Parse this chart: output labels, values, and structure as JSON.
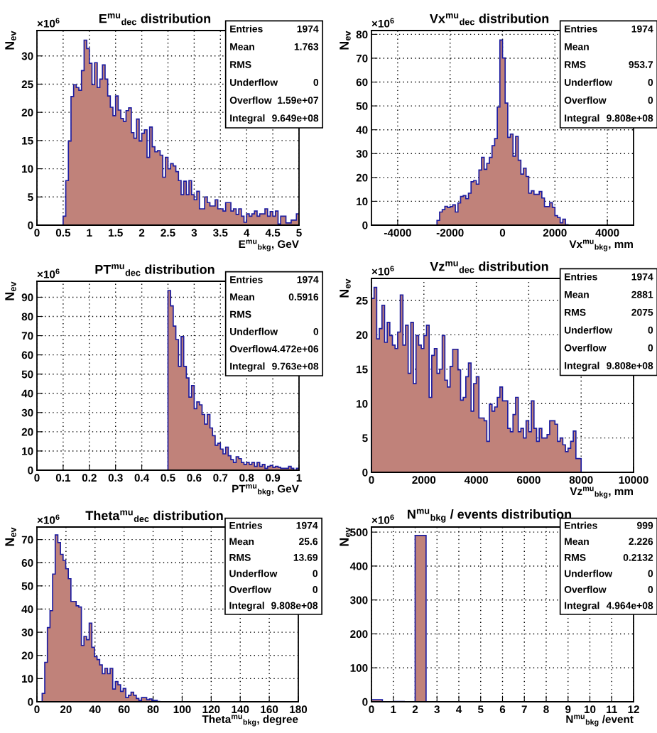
{
  "chart_data": [
    {
      "type": "histogram",
      "title": "E$^{mu}$$_{dec}$ distribution",
      "xlabel": "E$^{mu}$$_{bkg}$, GeV",
      "ylabel": "N$_{ev}$",
      "color": "#c0827a",
      "grid": true,
      "annotations": [
        "×10$^{6}$",
        "Entries 1974",
        "Mean 1.763",
        "RMS",
        "Underflow 0",
        "Overflow 1.59e+07",
        "Integral 9.649e+08"
      ],
      "bins": [
        0,
        0.5,
        0.55,
        0.6,
        0.65,
        0.7,
        0.75,
        0.8,
        0.85,
        0.9,
        0.95,
        1.0,
        1.05,
        1.1,
        1.15,
        1.2,
        1.25,
        1.3,
        1.35,
        1.4,
        1.45,
        1.5,
        1.55,
        1.6,
        1.65,
        1.7,
        1.75,
        1.8,
        1.85,
        1.9,
        1.95,
        2.0,
        2.05,
        2.1,
        2.15,
        2.2,
        2.25,
        2.3,
        2.35,
        2.4,
        2.45,
        2.5,
        2.55,
        2.6,
        2.65,
        2.7,
        2.75,
        2.8,
        2.85,
        2.9,
        2.95,
        3.0,
        3.05,
        3.1,
        3.15,
        3.2,
        3.25,
        3.3,
        3.35,
        3.4,
        3.45,
        3.5,
        3.55,
        3.6,
        3.65,
        3.7,
        3.75,
        3.8,
        3.85,
        3.9,
        3.95,
        4.0,
        4.05,
        4.1,
        4.15,
        4.2,
        4.25,
        4.3,
        4.35,
        4.4,
        4.45,
        4.5,
        4.55,
        4.6,
        4.65,
        4.7,
        4.75,
        4.8,
        4.85,
        4.9,
        4.95,
        5.0
      ],
      "values": [
        0,
        1.6,
        7.9,
        14.9,
        22.8,
        24.9,
        24.4,
        23.9,
        27.4,
        32.8,
        31.3,
        28.7,
        24.9,
        28.8,
        24.4,
        25.9,
        28.4,
        25.9,
        22.9,
        20.9,
        19.4,
        22.9,
        20.4,
        18.9,
        18.4,
        20.3,
        20.8,
        16.4,
        15.4,
        18.8,
        14.9,
        16.3,
        16.9,
        12.0,
        17.4,
        13.9,
        13.0,
        13.2,
        12.4,
        8.5,
        12.0,
        10.0,
        10.9,
        10.5,
        9.5,
        7.9,
        5.4,
        7.8,
        5.4,
        7.9,
        5.4,
        4.5,
        6.0,
        2.9,
        2.9,
        5.0,
        4.0,
        3.4,
        3.4,
        4.5,
        2.9,
        2.9,
        2.5,
        4.0,
        4.0,
        2.5,
        2.9,
        1.9,
        2.9,
        1.6,
        0.5,
        2.0,
        1.6,
        2.0,
        2.5,
        1.6,
        2.0,
        2.0,
        2.9,
        1.6,
        2.4,
        1.6,
        2.5,
        0.2,
        1.6,
        1.6,
        0.4,
        0.4,
        0.9,
        0.9,
        2.0
      ],
      "xlim": [
        0,
        5
      ],
      "ylim": [
        0,
        34.5
      ],
      "xticks": [
        0,
        0.5,
        1,
        1.5,
        2,
        2.5,
        3,
        3.5,
        4,
        4.5,
        5
      ],
      "yticks": [
        0,
        5,
        10,
        15,
        20,
        25,
        30
      ]
    },
    {
      "type": "histogram",
      "title": "Vx$^{mu}$$_{dec}$ distribution",
      "xlabel": "Vx$^{mu}$$_{bkg}$, mm",
      "ylabel": "N$_{ev}$",
      "color": "#c0827a",
      "grid": true,
      "annotations": [
        "×10$^{6}$",
        "Entries 1974",
        "Mean",
        "RMS 953.7",
        "Underflow 0",
        "Overflow 0",
        "Integral 9.808e+08"
      ],
      "bins": [
        -5000,
        -2500,
        -2400,
        -2300,
        -2200,
        -2100,
        -2000,
        -1900,
        -1800,
        -1700,
        -1600,
        -1500,
        -1400,
        -1300,
        -1200,
        -1100,
        -1000,
        -900,
        -800,
        -700,
        -600,
        -500,
        -400,
        -300,
        -200,
        -100,
        0,
        100,
        200,
        300,
        400,
        500,
        600,
        700,
        800,
        900,
        1000,
        1100,
        1200,
        1300,
        1400,
        1500,
        1600,
        1700,
        1800,
        1900,
        2000,
        2100,
        2200,
        2300,
        2400,
        2500,
        5000
      ],
      "values": [
        0,
        2.0,
        5.5,
        6.5,
        7.9,
        7.4,
        7.8,
        8.5,
        5.5,
        9.3,
        12.0,
        12.4,
        11.1,
        13.4,
        18.2,
        18.7,
        17.2,
        23.1,
        28.4,
        23.4,
        25.9,
        28.4,
        33.3,
        36.3,
        49.5,
        77.6,
        70.1,
        51.2,
        36.8,
        38.2,
        28.9,
        37.2,
        27.2,
        21.4,
        23.9,
        20.4,
        13.4,
        14.4,
        12.9,
        12.9,
        14.1,
        11.4,
        7.8,
        7.8,
        9.4,
        7.5,
        4.0,
        3.2,
        1.0,
        2.5,
        0.2,
        0
      ],
      "xlim": [
        -5000,
        5000
      ],
      "ylim": [
        0,
        81.6
      ],
      "xticks": [
        -4000,
        -2000,
        0,
        2000,
        4000
      ],
      "yticks": [
        0,
        10,
        20,
        30,
        40,
        50,
        60,
        70,
        80
      ]
    },
    {
      "type": "histogram",
      "title": "PT$^{mu}$$_{dec}$ distribution",
      "xlabel": "PT$^{mu}$$_{bkg}$, GeV",
      "ylabel": "N$_{ev}$",
      "color": "#c0827a",
      "grid": true,
      "annotations": [
        "×10$^{6}$",
        "Entries 1974",
        "Mean 0.5916",
        "RMS",
        "Underflow 0",
        "Overflow 4.472e+06",
        "Integral 9.763e+08"
      ],
      "bins": [
        0,
        0.5,
        0.51,
        0.52,
        0.53,
        0.54,
        0.55,
        0.56,
        0.57,
        0.58,
        0.59,
        0.6,
        0.61,
        0.62,
        0.63,
        0.64,
        0.65,
        0.66,
        0.67,
        0.68,
        0.69,
        0.7,
        0.71,
        0.72,
        0.73,
        0.74,
        0.75,
        0.76,
        0.77,
        0.78,
        0.79,
        0.8,
        0.81,
        0.82,
        0.83,
        0.84,
        0.85,
        0.86,
        0.87,
        0.88,
        0.89,
        0.9,
        0.91,
        0.92,
        0.93,
        0.94,
        0.95,
        0.96,
        0.97,
        0.98,
        0.99,
        1.0
      ],
      "values": [
        0,
        93.5,
        85.5,
        75,
        68,
        54,
        69.5,
        54,
        48,
        38,
        44,
        32,
        35.5,
        34,
        29,
        24,
        29,
        22,
        18,
        13,
        14,
        11,
        8.5,
        12,
        7.5,
        5.5,
        4,
        7,
        6,
        4,
        3,
        4,
        3,
        4,
        2,
        4,
        2,
        3,
        1,
        2,
        2.5,
        1.5,
        2,
        1.5,
        1,
        1,
        1,
        2,
        1,
        0,
        1
      ],
      "xlim": [
        0,
        1
      ],
      "ylim": [
        0,
        98.3
      ],
      "xticks": [
        0,
        0.1,
        0.2,
        0.3,
        0.4,
        0.5,
        0.6,
        0.7,
        0.8,
        0.9,
        1
      ],
      "yticks": [
        0,
        10,
        20,
        30,
        40,
        50,
        60,
        70,
        80,
        90
      ]
    },
    {
      "type": "histogram",
      "title": "Vz$^{mu}$$_{dec}$ distribution",
      "xlabel": "Vz$^{mu}$$_{bkg}$, mm",
      "ylabel": "N$_{ev}$",
      "color": "#c0827a",
      "grid": true,
      "annotations": [
        "×10$^{6}$",
        "Entries 1974",
        "Mean 2881",
        "RMS 2075",
        "Underflow 0",
        "Overflow 0",
        "Integral 9.808e+08"
      ],
      "bins": [
        0,
        100,
        200,
        300,
        400,
        500,
        600,
        700,
        800,
        900,
        1000,
        1100,
        1200,
        1300,
        1400,
        1500,
        1600,
        1700,
        1800,
        1900,
        2000,
        2100,
        2200,
        2300,
        2400,
        2500,
        2600,
        2700,
        2800,
        2900,
        3000,
        3100,
        3200,
        3300,
        3400,
        3500,
        3600,
        3700,
        3800,
        3900,
        4000,
        4100,
        4200,
        4300,
        4400,
        4500,
        4600,
        4700,
        4800,
        4900,
        5000,
        5100,
        5200,
        5300,
        5400,
        5500,
        5600,
        5700,
        5800,
        5900,
        6000,
        6100,
        6200,
        6300,
        6400,
        6500,
        6600,
        6700,
        6800,
        6900,
        7000,
        7100,
        7200,
        7300,
        7400,
        7500,
        7600,
        7700,
        7800,
        7900,
        8000,
        10000
      ],
      "values": [
        25.3,
        26.9,
        19.4,
        20.9,
        24.3,
        18.9,
        21.8,
        19.9,
        18.5,
        18.0,
        20.4,
        25.8,
        18.5,
        21.4,
        14.4,
        21.8,
        12.9,
        19.9,
        18.5,
        18.0,
        19.9,
        21.4,
        10.9,
        17.0,
        18.0,
        14.4,
        15.0,
        19.9,
        13.4,
        12.4,
        15.4,
        17.9,
        17.9,
        14.9,
        10.5,
        10.9,
        13.9,
        15.9,
        8.9,
        12.9,
        13.9,
        7.9,
        7.9,
        7.5,
        4.5,
        9.9,
        8.9,
        9.5,
        10.9,
        12.4,
        10.4,
        10.4,
        6.4,
        5.9,
        8.4,
        10.9,
        5.9,
        6.4,
        5.0,
        7.5,
        5.9,
        10.4,
        6.4,
        4.5,
        6.4,
        5.0,
        5.0,
        5.5,
        7.5,
        7.5,
        7.0,
        4.5,
        5.0,
        4.0,
        3.0,
        3.5,
        4.5,
        6.0,
        2.0,
        2.0,
        0
      ],
      "xlim": [
        0,
        10000
      ],
      "ylim": [
        0,
        28.2
      ],
      "xticks": [
        0,
        2000,
        4000,
        6000,
        8000,
        10000
      ],
      "yticks": [
        0,
        5,
        10,
        15,
        20,
        25
      ]
    },
    {
      "type": "histogram",
      "title": "Theta$^{mu}$$_{dec}$ distribution",
      "xlabel": "Theta$^{mu}$$_{bkg}$, degree",
      "ylabel": "N$_{ev}$",
      "color": "#c0827a",
      "grid": true,
      "annotations": [
        "×10$^{6}$",
        "Entries 1974",
        "Mean 25.6",
        "RMS 13.69",
        "Underflow 0",
        "Overflow 0",
        "Integral 9.808e+08"
      ],
      "bins": [
        0,
        3.6,
        5.4,
        7.2,
        9.0,
        10.8,
        12.6,
        14.4,
        16.2,
        18.0,
        19.8,
        21.6,
        23.4,
        25.2,
        27.0,
        28.8,
        30.6,
        32.4,
        34.2,
        36.0,
        37.8,
        39.6,
        41.4,
        43.2,
        45.0,
        46.8,
        48.6,
        50.4,
        52.2,
        54.0,
        55.8,
        57.6,
        59.4,
        61.2,
        63.0,
        64.8,
        66.6,
        68.4,
        70.2,
        72.0,
        73.8,
        75.6,
        77.4,
        79.2,
        81.0,
        82.8,
        84.6,
        180
      ],
      "values": [
        0,
        3.6,
        17.0,
        32.0,
        39.3,
        55.1,
        72.0,
        68.7,
        63.6,
        61.0,
        57.4,
        53.1,
        43.3,
        43.3,
        41.4,
        40.9,
        24.3,
        28.2,
        26.8,
        33.9,
        23.5,
        19.5,
        18.2,
        15.9,
        12.1,
        14.4,
        12.1,
        14.4,
        5.5,
        8.7,
        7.3,
        4.5,
        5.7,
        1.8,
        2.8,
        4.1,
        2.8,
        1.4,
        0.6,
        1.8,
        1.8,
        0.9,
        1.2,
        0.6,
        0.6,
        0.1,
        0
      ],
      "xlim": [
        0,
        180
      ],
      "ylim": [
        0,
        75.4
      ],
      "xticks": [
        0,
        20,
        40,
        60,
        80,
        100,
        120,
        140,
        160,
        180
      ],
      "yticks": [
        0,
        10,
        20,
        30,
        40,
        50,
        60,
        70
      ]
    },
    {
      "type": "histogram",
      "title": "N$^{mu}$$_{bkg}$ / events distribution",
      "xlabel": "N$^{mu}$$_{bkg}$ /event",
      "ylabel": "N$_{ev}$",
      "color": "#c0827a",
      "grid": true,
      "annotations": [
        "×10$^{6}$",
        "Entries 999",
        "Mean 2.226",
        "RMS 0.2132",
        "Underflow 0",
        "Overflow 0",
        "Integral 4.964e+08"
      ],
      "bins": [
        0,
        0.5,
        1,
        1.5,
        2,
        2.5,
        12
      ],
      "values": [
        6,
        0,
        1,
        0,
        490,
        0
      ],
      "xlim": [
        0,
        12
      ],
      "ylim": [
        0,
        515
      ],
      "xticks": [
        0,
        1,
        2,
        3,
        4,
        5,
        6,
        7,
        8,
        9,
        10,
        11,
        12
      ],
      "yticks": [
        0,
        100,
        200,
        300,
        400,
        500
      ]
    }
  ]
}
